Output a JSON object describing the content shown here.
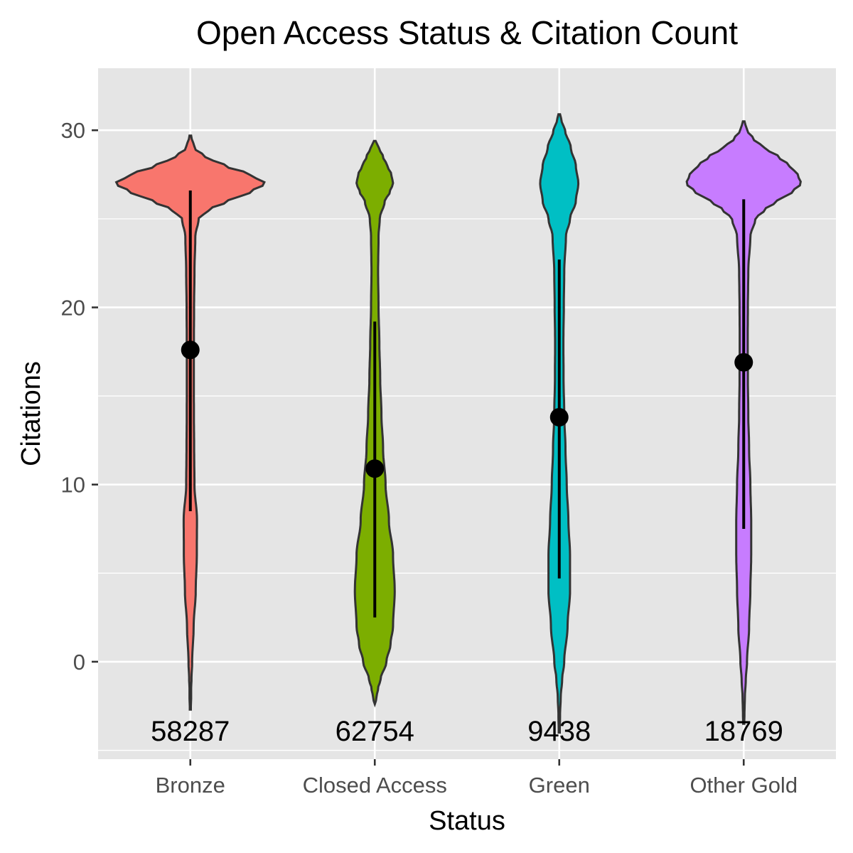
{
  "chart_data": {
    "type": "violin",
    "title": "Open Access Status & Citation Count",
    "xlabel": "Status",
    "ylabel": "Citations",
    "ylim": [
      -5.5,
      33.5
    ],
    "yticks": [
      0,
      10,
      20,
      30
    ],
    "grid": true,
    "legend": "none",
    "categories": [
      "Bronze",
      "Closed Access",
      "Green",
      "Other Gold"
    ],
    "series": [
      {
        "category": "Bronze",
        "color": "#F8766D",
        "count_label": "58287",
        "mean": 17.6,
        "interval": [
          8.5,
          26.6
        ],
        "range": [
          -2.7,
          29.7
        ],
        "density_profile": [
          [
            29.7,
            0.01
          ],
          [
            29.0,
            0.05
          ],
          [
            28.5,
            0.18
          ],
          [
            28.0,
            0.42
          ],
          [
            27.5,
            0.72
          ],
          [
            27.0,
            0.9
          ],
          [
            26.5,
            0.72
          ],
          [
            26.0,
            0.45
          ],
          [
            25.5,
            0.22
          ],
          [
            25.0,
            0.1
          ],
          [
            24.0,
            0.06
          ],
          [
            22.0,
            0.05
          ],
          [
            20.0,
            0.045
          ],
          [
            18.0,
            0.043
          ],
          [
            16.0,
            0.042
          ],
          [
            14.0,
            0.043
          ],
          [
            12.0,
            0.046
          ],
          [
            10.0,
            0.05
          ],
          [
            8.0,
            0.08
          ],
          [
            6.0,
            0.078
          ],
          [
            4.0,
            0.065
          ],
          [
            2.0,
            0.04
          ],
          [
            0.0,
            0.022
          ],
          [
            -1.0,
            0.014
          ],
          [
            -1.5,
            0.01
          ],
          [
            -2.0,
            0.01
          ],
          [
            -2.7,
            0.006
          ]
        ]
      },
      {
        "category": "Closed Access",
        "color": "#7CAE00",
        "count_label": "62754",
        "mean": 10.9,
        "interval": [
          2.5,
          19.2
        ],
        "range": [
          -2.4,
          29.4
        ],
        "density_profile": [
          [
            29.4,
            0.01
          ],
          [
            29.0,
            0.05
          ],
          [
            28.5,
            0.1
          ],
          [
            28.0,
            0.15
          ],
          [
            27.5,
            0.2
          ],
          [
            27.0,
            0.22
          ],
          [
            26.5,
            0.18
          ],
          [
            26.0,
            0.12
          ],
          [
            25.0,
            0.06
          ],
          [
            24.0,
            0.045
          ],
          [
            22.0,
            0.04
          ],
          [
            20.0,
            0.045
          ],
          [
            18.0,
            0.055
          ],
          [
            16.0,
            0.065
          ],
          [
            14.0,
            0.08
          ],
          [
            12.0,
            0.1
          ],
          [
            10.0,
            0.13
          ],
          [
            8.0,
            0.17
          ],
          [
            6.0,
            0.22
          ],
          [
            4.0,
            0.24
          ],
          [
            2.0,
            0.22
          ],
          [
            1.0,
            0.19
          ],
          [
            0.0,
            0.14
          ],
          [
            -1.0,
            0.07
          ],
          [
            -1.5,
            0.04
          ],
          [
            -2.0,
            0.02
          ],
          [
            -2.4,
            0.008
          ]
        ]
      },
      {
        "category": "Green",
        "color": "#00BFC4",
        "count_label": "9438",
        "mean": 13.8,
        "interval": [
          4.7,
          22.7
        ],
        "range": [
          -4.0,
          30.9
        ],
        "density_profile": [
          [
            30.9,
            0.01
          ],
          [
            30.5,
            0.03
          ],
          [
            30.0,
            0.07
          ],
          [
            29.0,
            0.14
          ],
          [
            28.0,
            0.2
          ],
          [
            27.0,
            0.23
          ],
          [
            26.0,
            0.2
          ],
          [
            25.0,
            0.13
          ],
          [
            24.0,
            0.08
          ],
          [
            22.0,
            0.06
          ],
          [
            20.0,
            0.055
          ],
          [
            18.0,
            0.05
          ],
          [
            16.0,
            0.052
          ],
          [
            14.0,
            0.06
          ],
          [
            12.0,
            0.075
          ],
          [
            10.0,
            0.09
          ],
          [
            8.0,
            0.11
          ],
          [
            6.0,
            0.13
          ],
          [
            4.0,
            0.13
          ],
          [
            2.0,
            0.1
          ],
          [
            0.0,
            0.06
          ],
          [
            -1.0,
            0.035
          ],
          [
            -2.0,
            0.018
          ],
          [
            -3.0,
            0.01
          ],
          [
            -4.0,
            0.006
          ]
        ]
      },
      {
        "category": "Other Gold",
        "color": "#C77CFF",
        "count_label": "18769",
        "mean": 16.9,
        "interval": [
          7.5,
          26.1
        ],
        "range": [
          -3.5,
          30.5
        ],
        "density_profile": [
          [
            30.5,
            0.01
          ],
          [
            30.0,
            0.04
          ],
          [
            29.5,
            0.12
          ],
          [
            29.0,
            0.25
          ],
          [
            28.5,
            0.42
          ],
          [
            28.0,
            0.55
          ],
          [
            27.5,
            0.65
          ],
          [
            27.0,
            0.69
          ],
          [
            26.5,
            0.58
          ],
          [
            26.0,
            0.4
          ],
          [
            25.5,
            0.25
          ],
          [
            25.0,
            0.14
          ],
          [
            24.0,
            0.08
          ],
          [
            22.0,
            0.055
          ],
          [
            20.0,
            0.05
          ],
          [
            18.0,
            0.048
          ],
          [
            16.0,
            0.05
          ],
          [
            14.0,
            0.055
          ],
          [
            12.0,
            0.065
          ],
          [
            10.0,
            0.08
          ],
          [
            8.0,
            0.09
          ],
          [
            6.0,
            0.09
          ],
          [
            4.0,
            0.08
          ],
          [
            2.0,
            0.065
          ],
          [
            0.0,
            0.04
          ],
          [
            -1.0,
            0.025
          ],
          [
            -2.0,
            0.014
          ],
          [
            -3.0,
            0.009
          ],
          [
            -3.5,
            0.006
          ]
        ]
      }
    ]
  }
}
